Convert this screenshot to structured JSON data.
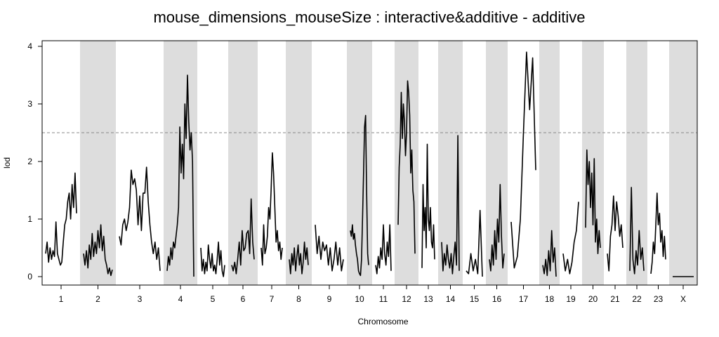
{
  "chart_data": {
    "type": "line",
    "title": "mouse_dimensions_mouseSize : interactive&additive - additive",
    "xlabel": "Chromosome",
    "ylabel": "lod",
    "ylim": [
      0,
      4
    ],
    "y_ticks": [
      0,
      1,
      2,
      3,
      4
    ],
    "threshold": 2.5,
    "chromosome_labels": [
      "1",
      "2",
      "3",
      "4",
      "5",
      "6",
      "7",
      "8",
      "9",
      "10",
      "11",
      "12",
      "13",
      "14",
      "15",
      "16",
      "17",
      "18",
      "19",
      "20",
      "21",
      "22",
      "23",
      "X"
    ],
    "chromosome_bands": "alternating white / light gray, starting white",
    "line_color": "#000000",
    "band_color": "#dddddd",
    "threshold_color": "#888888",
    "series": [
      {
        "chromosome": "1",
        "values": [
          0.4,
          0.6,
          0.25,
          0.5,
          0.3,
          0.45,
          0.35,
          0.95,
          0.4,
          0.3,
          0.2,
          0.25,
          0.6,
          0.9,
          1.0,
          1.3,
          1.45,
          1.0,
          1.6,
          1.2,
          1.8,
          1.1
        ]
      },
      {
        "chromosome": "2",
        "values": [
          0.4,
          0.2,
          0.45,
          0.15,
          0.55,
          0.3,
          0.75,
          0.35,
          0.6,
          0.4,
          0.8,
          0.5,
          0.9,
          0.45,
          0.7,
          0.3,
          0.2,
          0.05,
          0.15,
          0.02,
          0.12
        ]
      },
      {
        "chromosome": "3",
        "values": [
          0.7,
          0.55,
          0.9,
          1.0,
          0.8,
          0.95,
          1.2,
          1.85,
          1.6,
          1.7,
          1.5,
          0.9,
          1.4,
          0.8,
          1.45,
          1.45,
          1.9,
          1.3,
          0.9,
          0.6,
          0.4,
          0.6,
          0.3,
          0.5,
          0.1
        ]
      },
      {
        "chromosome": "4",
        "values": [
          0.1,
          0.35,
          0.2,
          0.5,
          0.3,
          0.6,
          0.5,
          0.7,
          0.9,
          1.2,
          2.6,
          1.8,
          2.3,
          1.7,
          3.0,
          2.4,
          3.5,
          2.7,
          2.2,
          2.5,
          2.0,
          0.0
        ]
      },
      {
        "chromosome": "5",
        "values": [
          0.5,
          0.1,
          0.3,
          0.05,
          0.25,
          0.1,
          0.55,
          0.3,
          0.15,
          0.4,
          0.1,
          0.2,
          0.05,
          0.3,
          0.6,
          0.2,
          0.45,
          0.1,
          0.0,
          0.2
        ]
      },
      {
        "chromosome": "6",
        "values": [
          0.2,
          0.1,
          0.25,
          0.05,
          0.3,
          0.6,
          0.2,
          0.8,
          0.45,
          0.5,
          0.75,
          0.8,
          0.4,
          1.35,
          0.6,
          0.3
        ]
      },
      {
        "chromosome": "7",
        "values": [
          0.5,
          0.2,
          0.9,
          0.4,
          0.5,
          0.7,
          1.2,
          1.0,
          1.5,
          2.15,
          1.8,
          1.2,
          0.6,
          0.8,
          0.45,
          0.6,
          0.3,
          0.5
        ]
      },
      {
        "chromosome": "8",
        "values": [
          0.3,
          0.05,
          0.4,
          0.2,
          0.5,
          0.1,
          0.35,
          0.55,
          0.2,
          0.4,
          0.05,
          0.25,
          0.6,
          0.3,
          0.5,
          0.2
        ]
      },
      {
        "chromosome": "9",
        "values": [
          0.9,
          0.4,
          0.7,
          0.3,
          0.6,
          0.45,
          0.55,
          0.2,
          0.5,
          0.1,
          0.3,
          0.6,
          0.2,
          0.5,
          0.1,
          0.3
        ]
      },
      {
        "chromosome": "10",
        "values": [
          0.8,
          0.7,
          0.9,
          0.65,
          0.75,
          0.55,
          0.4,
          0.3,
          0.1,
          0.05,
          0.02,
          0.3,
          1.0,
          1.8,
          2.6,
          2.8,
          1.5,
          0.4,
          0.2
        ]
      },
      {
        "chromosome": "11",
        "values": [
          0.2,
          0.05,
          0.35,
          0.15,
          0.5,
          0.3,
          0.9,
          0.4,
          0.2,
          0.6,
          0.35,
          0.9,
          0.1
        ]
      },
      {
        "chromosome": "12",
        "values": [
          0.9,
          1.9,
          2.3,
          3.2,
          2.4,
          3.0,
          2.7,
          2.1,
          2.5,
          3.4,
          3.2,
          2.8,
          1.8,
          2.2,
          1.5,
          1.3,
          0.4
        ]
      },
      {
        "chromosome": "13",
        "values": [
          0.15,
          1.6,
          0.8,
          1.2,
          0.5,
          2.3,
          1.0,
          0.8,
          1.2,
          0.6,
          0.5,
          0.9,
          0.3
        ]
      },
      {
        "chromosome": "14",
        "values": [
          0.6,
          0.1,
          0.4,
          0.2,
          0.55,
          0.3,
          0.15,
          0.4,
          0.05,
          0.35,
          0.6,
          0.2,
          2.45,
          0.1
        ]
      },
      {
        "chromosome": "15",
        "values": [
          0.1,
          0.05,
          0.4,
          0.1,
          0.3,
          0.05,
          1.15,
          0.0
        ]
      },
      {
        "chromosome": "16",
        "values": [
          0.3,
          0.1,
          0.55,
          0.2,
          0.8,
          0.3,
          1.0,
          0.6,
          1.6,
          0.7,
          0.15,
          0.4
        ]
      },
      {
        "chromosome": "17",
        "values": [
          0.95,
          0.15,
          0.35,
          1.0,
          2.5,
          3.9,
          2.9,
          3.8,
          1.85
        ]
      },
      {
        "chromosome": "18",
        "values": [
          0.2,
          0.05,
          0.3,
          0.02,
          0.45,
          0.1,
          0.8,
          0.25,
          0.5,
          0.0
        ]
      },
      {
        "chromosome": "19",
        "values": [
          0.4,
          0.1,
          0.3,
          0.05,
          0.25,
          0.6,
          0.8,
          1.3
        ]
      },
      {
        "chromosome": "20",
        "values": [
          0.85,
          2.2,
          1.6,
          2.0,
          1.2,
          1.8,
          0.9,
          2.05,
          0.6,
          1.0,
          0.4,
          0.8,
          0.5
        ]
      },
      {
        "chromosome": "21",
        "values": [
          0.4,
          0.1,
          0.7,
          0.9,
          1.4,
          0.8,
          1.3,
          1.05,
          0.7,
          0.9,
          0.5
        ]
      },
      {
        "chromosome": "22",
        "values": [
          0.1,
          1.55,
          0.3,
          0.05,
          0.45,
          0.2,
          0.8,
          0.3,
          0.5,
          0.1
        ]
      },
      {
        "chromosome": "23",
        "values": [
          0.05,
          0.25,
          0.6,
          0.4,
          0.9,
          1.45,
          0.9,
          1.1,
          0.6,
          0.8,
          0.35,
          0.7,
          0.3
        ]
      },
      {
        "chromosome": "X",
        "values": [
          0.0,
          0.0
        ]
      }
    ]
  }
}
